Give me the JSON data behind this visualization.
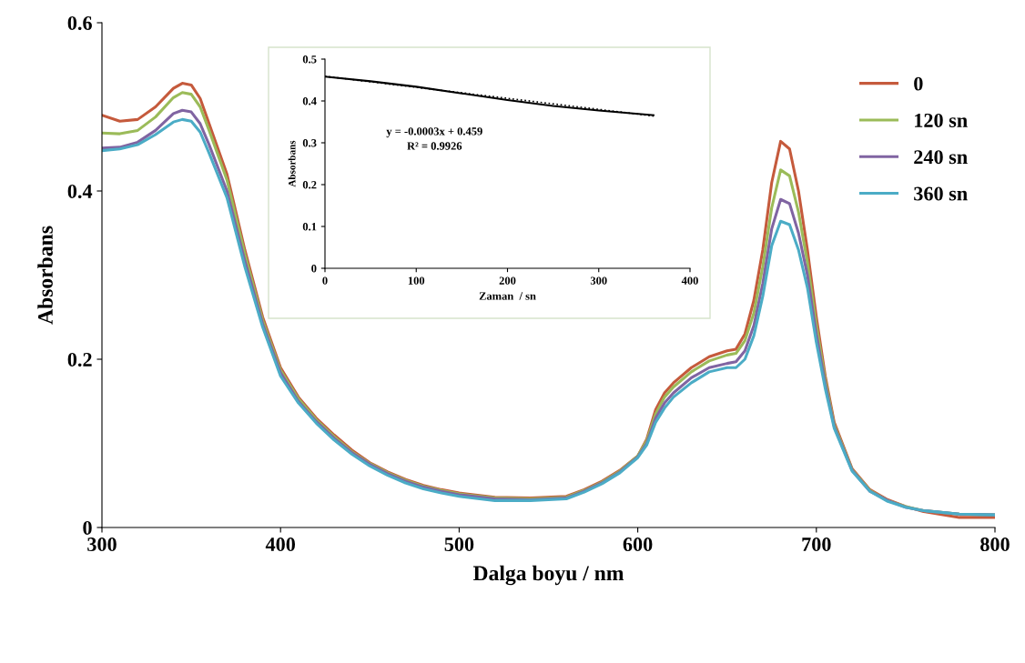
{
  "chart_data": [
    {
      "type": "line",
      "xlabel": "Dalga boyu / nm",
      "ylabel": "Absorbans",
      "x": [
        300,
        310,
        320,
        330,
        340,
        345,
        350,
        355,
        360,
        370,
        380,
        390,
        400,
        410,
        420,
        430,
        440,
        450,
        460,
        470,
        480,
        490,
        500,
        520,
        540,
        560,
        570,
        580,
        590,
        600,
        605,
        610,
        615,
        620,
        630,
        640,
        650,
        655,
        660,
        665,
        670,
        675,
        680,
        685,
        690,
        695,
        700,
        705,
        710,
        720,
        730,
        740,
        750,
        760,
        780,
        800
      ],
      "series": [
        {
          "name": "0",
          "color": "#c55a3c",
          "values": [
            0.49,
            0.483,
            0.485,
            0.5,
            0.522,
            0.528,
            0.526,
            0.51,
            0.48,
            0.42,
            0.33,
            0.25,
            0.19,
            0.155,
            0.13,
            0.11,
            0.092,
            0.077,
            0.066,
            0.057,
            0.05,
            0.045,
            0.041,
            0.036,
            0.035,
            0.037,
            0.045,
            0.055,
            0.068,
            0.085,
            0.105,
            0.14,
            0.16,
            0.172,
            0.19,
            0.203,
            0.21,
            0.212,
            0.23,
            0.27,
            0.33,
            0.41,
            0.459,
            0.45,
            0.4,
            0.33,
            0.25,
            0.18,
            0.125,
            0.07,
            0.045,
            0.033,
            0.025,
            0.019,
            0.012,
            0.012
          ]
        },
        {
          "name": "120 sn",
          "color": "#9bbb59",
          "values": [
            0.469,
            0.468,
            0.472,
            0.488,
            0.511,
            0.517,
            0.515,
            0.5,
            0.472,
            0.413,
            0.325,
            0.246,
            0.187,
            0.153,
            0.128,
            0.108,
            0.09,
            0.076,
            0.065,
            0.056,
            0.049,
            0.044,
            0.04,
            0.035,
            0.034,
            0.036,
            0.044,
            0.054,
            0.067,
            0.085,
            0.103,
            0.135,
            0.155,
            0.167,
            0.185,
            0.198,
            0.205,
            0.207,
            0.222,
            0.255,
            0.31,
            0.38,
            0.425,
            0.418,
            0.375,
            0.315,
            0.24,
            0.175,
            0.122,
            0.069,
            0.044,
            0.032,
            0.025,
            0.02,
            0.016,
            0.015
          ]
        },
        {
          "name": "240 sn",
          "color": "#8064a2",
          "values": [
            0.451,
            0.452,
            0.458,
            0.472,
            0.492,
            0.496,
            0.494,
            0.48,
            0.455,
            0.4,
            0.317,
            0.242,
            0.184,
            0.15,
            0.126,
            0.106,
            0.089,
            0.075,
            0.064,
            0.055,
            0.048,
            0.043,
            0.039,
            0.034,
            0.033,
            0.035,
            0.043,
            0.053,
            0.066,
            0.084,
            0.1,
            0.13,
            0.148,
            0.16,
            0.178,
            0.19,
            0.195,
            0.197,
            0.21,
            0.24,
            0.29,
            0.355,
            0.39,
            0.385,
            0.35,
            0.3,
            0.23,
            0.17,
            0.12,
            0.068,
            0.043,
            0.032,
            0.024,
            0.02,
            0.016,
            0.015
          ]
        },
        {
          "name": "360 sn",
          "color": "#4bacc6",
          "values": [
            0.448,
            0.45,
            0.455,
            0.467,
            0.482,
            0.485,
            0.483,
            0.47,
            0.445,
            0.392,
            0.31,
            0.238,
            0.18,
            0.148,
            0.124,
            0.104,
            0.087,
            0.073,
            0.062,
            0.053,
            0.046,
            0.041,
            0.037,
            0.032,
            0.032,
            0.034,
            0.042,
            0.052,
            0.065,
            0.083,
            0.098,
            0.125,
            0.142,
            0.155,
            0.172,
            0.185,
            0.19,
            0.19,
            0.2,
            0.228,
            0.275,
            0.335,
            0.364,
            0.36,
            0.33,
            0.285,
            0.22,
            0.165,
            0.118,
            0.067,
            0.043,
            0.031,
            0.024,
            0.02,
            0.016,
            0.015
          ]
        }
      ],
      "xlim": [
        300,
        800
      ],
      "xticks": [
        300,
        400,
        500,
        600,
        700,
        800
      ],
      "ylim": [
        0,
        0.6
      ],
      "yticks": [
        0,
        0.2,
        0.4,
        0.6
      ],
      "legend": "top right",
      "grid": false
    },
    {
      "type": "line",
      "xlabel": "Zaman  / sn",
      "ylabel": "Absorbans",
      "series": [
        {
          "color": "#000000",
          "x": [
            0,
            50,
            100,
            150,
            200,
            250,
            300,
            360
          ],
          "values": [
            0.458,
            0.447,
            0.434,
            0.418,
            0.402,
            0.388,
            0.377,
            0.366
          ]
        },
        {
          "color": "#000000",
          "line_style": "dotted",
          "x": [
            0,
            360
          ],
          "values": [
            0.459,
            0.364
          ]
        }
      ],
      "xlim": [
        0,
        400
      ],
      "xticks": [
        0,
        100,
        200,
        300,
        400
      ],
      "ylim": [
        0,
        0.5
      ],
      "yticks": [
        0,
        0.1,
        0.2,
        0.3,
        0.4,
        0.5
      ],
      "annotations": [
        "y = -0.0003x + 0.459",
        "R² = 0.9926"
      ],
      "grid": false
    }
  ]
}
